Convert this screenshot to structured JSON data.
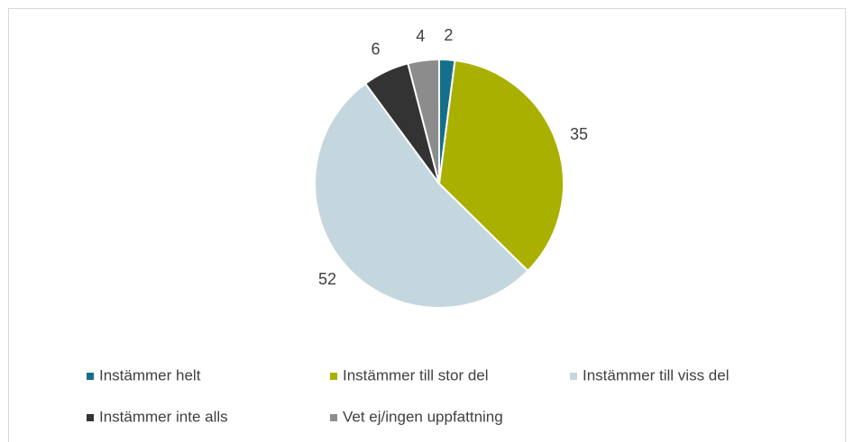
{
  "chart_data": {
    "type": "pie",
    "categories": [
      "Instämmer helt",
      "Instämmer till stor del",
      "Instämmer till viss del",
      "Instämmer inte alls",
      "Vet ej/ingen uppfattning"
    ],
    "values": [
      2,
      35,
      52,
      6,
      4
    ],
    "colors": [
      "#156f8a",
      "#a9b000",
      "#c5d7de",
      "#333333",
      "#8c8c8c"
    ],
    "legend": "bottom"
  }
}
